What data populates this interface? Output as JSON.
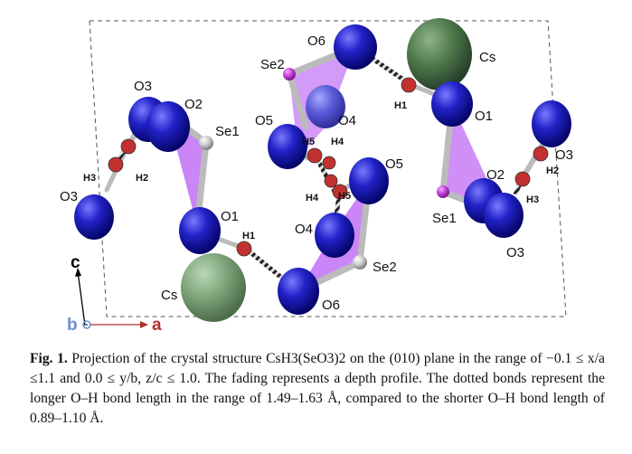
{
  "figure": {
    "atom_labels": {
      "o6_top": "O6",
      "cs_top": "Cs",
      "se2_top": "Se2",
      "o3_left": "O3",
      "o2_left": "O2",
      "se1_left": "Se1",
      "o5_left": "O5",
      "o4_top": "O4",
      "h5_top": "H5",
      "h4_top": "H4",
      "h1_top": "H1",
      "o1_right": "O1",
      "o3_right_top": "O3",
      "h3_left": "H3",
      "h2_left": "H2",
      "o3_left_bottom": "O3",
      "o5_right": "O5",
      "h4_bottom": "H4",
      "h5_bottom": "H5",
      "o2_right": "O2",
      "h2_right": "H2",
      "h3_right": "H3",
      "se1_right": "Se1",
      "o3_right_bottom": "O3",
      "o1_bottom": "O1",
      "h1_bottom": "H1",
      "o4_bottom": "O4",
      "se2_bottom": "Se2",
      "cs_bottom": "Cs",
      "o6_bottom": "O6"
    },
    "axes": {
      "c": "c",
      "b": "b",
      "a": "a"
    },
    "colors": {
      "oxygen": "#1f1fbf",
      "selenium": "#c03cd6",
      "cesium": "#5c8a5a",
      "hydrogen": "#c23030",
      "polyhedron": "#a020f0",
      "axis_a": "#b0302c",
      "axis_b": "#6a8fd0",
      "axis_c": "#000000"
    }
  },
  "caption": {
    "label": "Fig. 1.",
    "text": "Projection of the crystal structure CsH3(SeO3)2 on the (010) plane in the range of −0.1 ≤ x/a ≤1.1 and 0.0 ≤ y/b, z/c ≤ 1.0. The fading represents a depth profile. The dotted bonds represent the longer O–H bond length in the range of 1.49–1.63 Å, compared to the shorter O–H bond length of 0.89–1.10 Å."
  }
}
